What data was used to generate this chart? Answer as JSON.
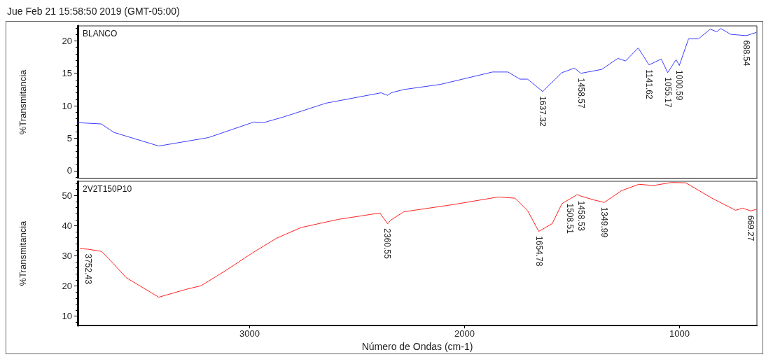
{
  "chart_data": [
    {
      "type": "line",
      "title": "Jue Feb 21 15:58:50 2019 (GMT-05:00)",
      "ylabel": "%Transmitancia",
      "xlim": [
        3800,
        640
      ],
      "xticks": [
        3000,
        2000,
        1000
      ],
      "ylim": [
        -1.2,
        22.3
      ],
      "yticks": [
        0,
        5,
        10,
        15,
        20
      ],
      "tick_labels": "y",
      "grid": false,
      "legend": false,
      "series": [
        {
          "name": "BLANCO",
          "color": "#3b3bff",
          "x": [
            3800,
            3690,
            3632,
            3423,
            3192,
            2980,
            2935,
            2840,
            2645,
            2388,
            2358,
            2342,
            2283,
            2111,
            1870,
            1798,
            1743,
            1707,
            1637,
            1547,
            1489,
            1459,
            1362,
            1287,
            1251,
            1192,
            1142,
            1085,
            1055,
            1016,
            1001,
            958,
            912,
            857,
            827,
            808,
            762,
            689,
            642
          ],
          "values": [
            7.4,
            7.2,
            5.9,
            3.8,
            5.1,
            7.5,
            7.4,
            8.3,
            10.4,
            12.0,
            11.6,
            12.0,
            12.5,
            13.3,
            15.2,
            15.2,
            14.1,
            14.1,
            12.2,
            15.1,
            15.8,
            15.0,
            15.6,
            17.3,
            16.9,
            18.9,
            16.3,
            17.2,
            15.1,
            17.1,
            16.2,
            20.3,
            20.3,
            21.8,
            21.4,
            21.9,
            21.0,
            20.8,
            21.3
          ]
        }
      ],
      "annotations": [
        {
          "text": "1637.32",
          "x": 1637.32,
          "y": 12.2
        },
        {
          "text": "1458.57",
          "x": 1458.57,
          "y": 15.0
        },
        {
          "text": "1141.62",
          "x": 1141.62,
          "y": 16.3
        },
        {
          "text": "1055.17",
          "x": 1055.17,
          "y": 15.1
        },
        {
          "text": "1000.59",
          "x": 1000.59,
          "y": 16.2
        },
        {
          "text": "688.54",
          "x": 688.54,
          "y": 20.8
        }
      ]
    },
    {
      "type": "line",
      "xlabel": "Número de Ondas (cm-1)",
      "ylabel": "%Transmitancia",
      "xlim": [
        3800,
        640
      ],
      "xticks": [
        3000,
        2000,
        1000
      ],
      "ylim": [
        6.9,
        54.7
      ],
      "yticks": [
        10,
        20,
        30,
        40,
        50
      ],
      "grid": false,
      "legend": false,
      "series": [
        {
          "name": "2V2T150P10",
          "color": "#ff2020",
          "x": [
            3790,
            3752,
            3690,
            3656,
            3575,
            3423,
            3296,
            3226,
            3110,
            2993,
            2876,
            2760,
            2586,
            2394,
            2358,
            2342,
            2283,
            2052,
            1844,
            1765,
            1707,
            1655,
            1592,
            1547,
            1509,
            1476,
            1459,
            1397,
            1350,
            1270,
            1189,
            1121,
            1039,
            971,
            844,
            739,
            707,
            669,
            642
          ],
          "values": [
            32.4,
            32.2,
            31.5,
            29.1,
            22.8,
            16.3,
            18.9,
            20.1,
            25.2,
            30.7,
            35.8,
            39.4,
            42.1,
            44.2,
            40.6,
            41.9,
            44.6,
            47.0,
            49.5,
            49.1,
            45.0,
            38.1,
            40.7,
            47.3,
            48.9,
            50.3,
            49.8,
            48.5,
            47.7,
            51.6,
            53.7,
            53.3,
            54.3,
            54.2,
            48.9,
            45.1,
            45.8,
            44.9,
            45.4
          ]
        }
      ],
      "annotations": [
        {
          "text": "3752.43",
          "x": 3752.43,
          "y": 32.2
        },
        {
          "text": "2360.55",
          "x": 2360.55,
          "y": 40.6
        },
        {
          "text": "1654.78",
          "x": 1654.78,
          "y": 38.1
        },
        {
          "text": "1508.51",
          "x": 1508.51,
          "y": 48.9
        },
        {
          "text": "1458.53",
          "x": 1458.53,
          "y": 49.8
        },
        {
          "text": "1349.99",
          "x": 1349.99,
          "y": 47.7
        },
        {
          "text": "669.27",
          "x": 669.27,
          "y": 44.9
        }
      ]
    }
  ]
}
